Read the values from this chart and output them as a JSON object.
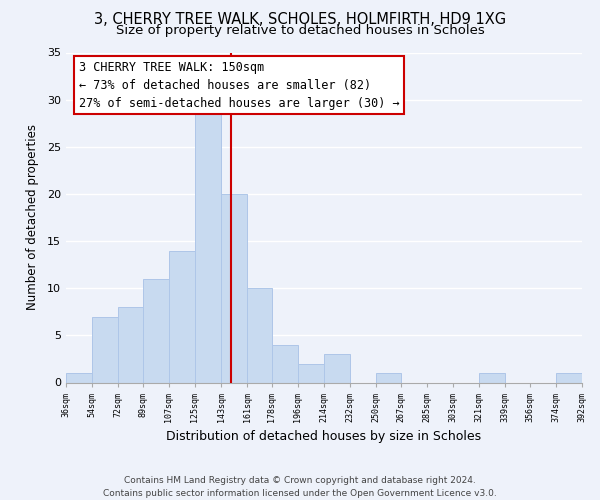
{
  "title1": "3, CHERRY TREE WALK, SCHOLES, HOLMFIRTH, HD9 1XG",
  "title2": "Size of property relative to detached houses in Scholes",
  "xlabel": "Distribution of detached houses by size in Scholes",
  "ylabel": "Number of detached properties",
  "bar_edges": [
    36,
    54,
    72,
    89,
    107,
    125,
    143,
    161,
    178,
    196,
    214,
    232,
    250,
    267,
    285,
    303,
    321,
    339,
    356,
    374,
    392
  ],
  "bar_heights": [
    1,
    7,
    8,
    11,
    14,
    29,
    20,
    10,
    4,
    2,
    3,
    0,
    1,
    0,
    0,
    0,
    1,
    0,
    0,
    1
  ],
  "bar_color": "#c8daf0",
  "bar_edgecolor": "#aec6e8",
  "vline_x": 150,
  "vline_color": "#cc0000",
  "annotation_line1": "3 CHERRY TREE WALK: 150sqm",
  "annotation_line2": "← 73% of detached houses are smaller (82)",
  "annotation_line3": "27% of semi-detached houses are larger (30) →",
  "annotation_box_edgecolor": "#cc0000",
  "annotation_box_facecolor": "#ffffff",
  "ylim": [
    0,
    35
  ],
  "yticks": [
    0,
    5,
    10,
    15,
    20,
    25,
    30,
    35
  ],
  "tick_labels": [
    "36sqm",
    "54sqm",
    "72sqm",
    "89sqm",
    "107sqm",
    "125sqm",
    "143sqm",
    "161sqm",
    "178sqm",
    "196sqm",
    "214sqm",
    "232sqm",
    "250sqm",
    "267sqm",
    "285sqm",
    "303sqm",
    "321sqm",
    "339sqm",
    "356sqm",
    "374sqm",
    "392sqm"
  ],
  "footer": "Contains HM Land Registry data © Crown copyright and database right 2024.\nContains public sector information licensed under the Open Government Licence v3.0.",
  "bg_color": "#eef2fa",
  "grid_color": "#ffffff",
  "title1_fontsize": 10.5,
  "title2_fontsize": 9.5,
  "xlabel_fontsize": 9,
  "ylabel_fontsize": 8.5,
  "footer_fontsize": 6.5,
  "annotation_fontsize": 8.5
}
